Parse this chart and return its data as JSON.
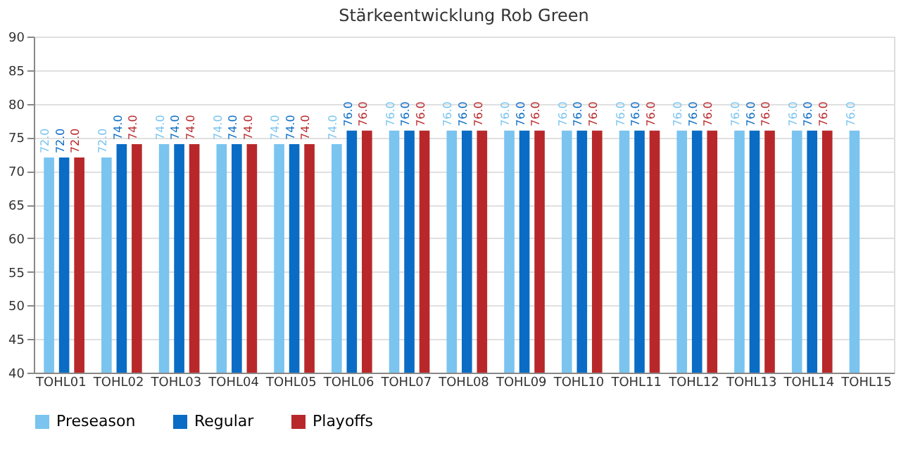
{
  "chart_data": {
    "type": "bar",
    "title": "Stärkeentwicklung Rob Green",
    "categories": [
      "TOHL01",
      "TOHL02",
      "TOHL03",
      "TOHL04",
      "TOHL05",
      "TOHL06",
      "TOHL07",
      "TOHL08",
      "TOHL09",
      "TOHL10",
      "TOHL11",
      "TOHL12",
      "TOHL13",
      "TOHL14",
      "TOHL15"
    ],
    "series": [
      {
        "name": "Preseason",
        "color": "#7ac4ef",
        "values": [
          72,
          72,
          74,
          74,
          74,
          74,
          76,
          76,
          76,
          76,
          76,
          76,
          76,
          76,
          76
        ],
        "value_labels": [
          "72.0",
          "72.0",
          "74.0",
          "74.0",
          "74.0",
          "74.0",
          "76.0",
          "76.0",
          "76.0",
          "76.0",
          "76.0",
          "76.0",
          "76.0",
          "76.0",
          "76.0"
        ]
      },
      {
        "name": "Regular",
        "color": "#0a6cc4",
        "values": [
          72,
          74,
          74,
          74,
          74,
          76,
          76,
          76,
          76,
          76,
          76,
          76,
          76,
          76,
          null
        ],
        "value_labels": [
          "72.0",
          "74.0",
          "74.0",
          "74.0",
          "74.0",
          "76.0",
          "76.0",
          "76.0",
          "76.0",
          "76.0",
          "76.0",
          "76.0",
          "76.0",
          "76.0",
          null
        ]
      },
      {
        "name": "Playoffs",
        "color": "#b8282b",
        "values": [
          72,
          74,
          74,
          74,
          74,
          76,
          76,
          76,
          76,
          76,
          76,
          76,
          76,
          76,
          null
        ],
        "value_labels": [
          "72.0",
          "74.0",
          "74.0",
          "74.0",
          "74.0",
          "76.0",
          "76.0",
          "76.0",
          "76.0",
          "76.0",
          "76.0",
          "76.0",
          "76.0",
          "76.0",
          null
        ]
      }
    ],
    "ylim": [
      40,
      90
    ],
    "yticks": [
      40,
      45,
      50,
      55,
      60,
      65,
      70,
      75,
      80,
      85,
      90
    ],
    "grid": "y",
    "legend": "bottom"
  }
}
